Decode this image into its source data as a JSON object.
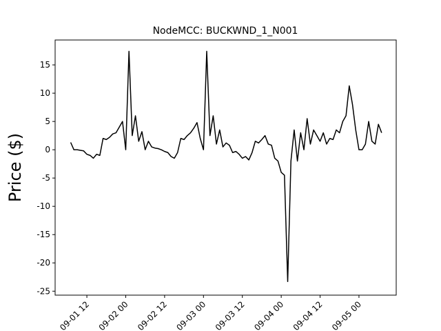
{
  "chart_data": {
    "type": "line",
    "title": "NodeMCC: BUCKWND_1_N001",
    "ylabel": "Price ($)",
    "color": "#000000",
    "x": [
      7,
      8,
      9,
      10,
      11,
      12,
      13,
      14,
      15,
      16,
      17,
      18,
      19,
      20,
      21,
      22,
      23,
      24,
      25,
      26,
      27,
      28,
      29,
      30,
      31,
      32,
      33,
      34,
      35,
      36,
      37,
      38,
      39,
      40,
      41,
      42,
      43,
      44,
      45,
      46,
      47,
      48,
      49,
      50,
      51,
      52,
      53,
      54,
      55,
      56,
      57,
      58,
      59,
      60,
      61,
      62,
      63,
      64,
      65,
      66,
      67,
      68,
      69,
      70,
      71,
      72,
      73,
      74,
      75,
      76,
      77,
      78,
      79,
      80,
      81,
      82,
      83,
      84,
      85,
      86,
      87,
      88,
      89,
      90,
      91,
      92,
      93,
      94,
      95,
      96,
      97,
      98,
      99,
      100,
      101,
      102,
      103
    ],
    "values": [
      1.3,
      0,
      0,
      -0.1,
      -0.2,
      -0.8,
      -1.0,
      -1.5,
      -0.8,
      -1.0,
      2.0,
      1.8,
      2.2,
      2.8,
      3.0,
      4.0,
      5.0,
      0,
      17.4,
      2.5,
      6.0,
      1.5,
      3.2,
      0,
      1.5,
      0.5,
      0.3,
      0.2,
      0,
      -0.3,
      -0.5,
      -1.2,
      -1.5,
      -0.5,
      2.0,
      1.8,
      2.5,
      3.0,
      3.8,
      4.8,
      2.0,
      0,
      17.4,
      2.5,
      6.0,
      1.0,
      3.5,
      0.5,
      1.2,
      0.8,
      -0.5,
      -0.3,
      -0.8,
      -1.5,
      -1.2,
      -1.8,
      -0.5,
      1.5,
      1.2,
      1.8,
      2.5,
      1.0,
      0.8,
      -1.5,
      -2.0,
      -4.0,
      -4.5,
      -23.3,
      -2.0,
      3.5,
      -2.0,
      3.0,
      0,
      5.5,
      1.0,
      3.5,
      2.5,
      1.5,
      3.0,
      1.0,
      2.0,
      1.8,
      3.5,
      3.0,
      5.0,
      6.0,
      11.3,
      8.0,
      3.5,
      0,
      0,
      1.0,
      5.0,
      1.5,
      1.0,
      4.5,
      3.0
    ],
    "xlim": [
      2.2,
      107.5
    ],
    "ylim": [
      -25.7,
      19.4
    ],
    "xticks": [
      {
        "value": 12,
        "label": "09-01 12"
      },
      {
        "value": 24,
        "label": "09-02 00"
      },
      {
        "value": 36,
        "label": "09-02 12"
      },
      {
        "value": 48,
        "label": "09-03 00"
      },
      {
        "value": 60,
        "label": "09-03 12"
      },
      {
        "value": 72,
        "label": "09-04 00"
      },
      {
        "value": 84,
        "label": "09-04 12"
      },
      {
        "value": 96,
        "label": "09-05 00"
      }
    ],
    "yticks": [
      -25,
      -20,
      -15,
      -10,
      -5,
      0,
      5,
      10,
      15
    ]
  }
}
